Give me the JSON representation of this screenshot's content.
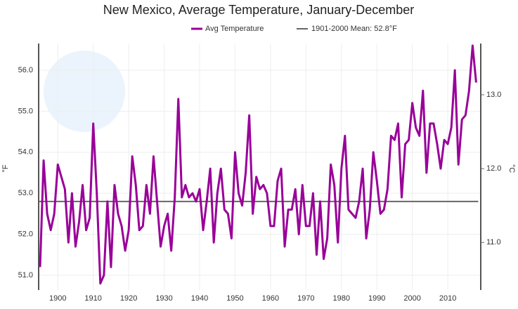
{
  "chart_data": {
    "type": "line",
    "title": "New Mexico, Average Temperature, January-December",
    "ylabel": "°F",
    "y2label": "°C",
    "x": [
      1895,
      1896,
      1897,
      1898,
      1899,
      1900,
      1901,
      1902,
      1903,
      1904,
      1905,
      1906,
      1907,
      1908,
      1909,
      1910,
      1911,
      1912,
      1913,
      1914,
      1915,
      1916,
      1917,
      1918,
      1919,
      1920,
      1921,
      1922,
      1923,
      1924,
      1925,
      1926,
      1927,
      1928,
      1929,
      1930,
      1931,
      1932,
      1933,
      1934,
      1935,
      1936,
      1937,
      1938,
      1939,
      1940,
      1941,
      1942,
      1943,
      1944,
      1945,
      1946,
      1947,
      1948,
      1949,
      1950,
      1951,
      1952,
      1953,
      1954,
      1955,
      1956,
      1957,
      1958,
      1959,
      1960,
      1961,
      1962,
      1963,
      1964,
      1965,
      1966,
      1967,
      1968,
      1969,
      1970,
      1971,
      1972,
      1973,
      1974,
      1975,
      1976,
      1977,
      1978,
      1979,
      1980,
      1981,
      1982,
      1983,
      1984,
      1985,
      1986,
      1987,
      1988,
      1989,
      1990,
      1991,
      1992,
      1993,
      1994,
      1995,
      1996,
      1997,
      1998,
      1999,
      2000,
      2001,
      2002,
      2003,
      2004,
      2005,
      2006,
      2007,
      2008,
      2009,
      2010,
      2011,
      2012,
      2013,
      2014,
      2015,
      2016,
      2017,
      2018
    ],
    "series": [
      {
        "name": "Avg Temperature",
        "color": "#990099",
        "values": [
          51.2,
          53.8,
          52.5,
          52.1,
          52.5,
          53.7,
          53.4,
          53.1,
          51.8,
          53.0,
          51.7,
          52.3,
          53.2,
          52.1,
          52.4,
          54.7,
          53.0,
          50.8,
          51.0,
          52.8,
          51.2,
          53.2,
          52.5,
          52.2,
          51.6,
          52.1,
          53.9,
          53.2,
          52.1,
          52.2,
          53.2,
          52.5,
          53.9,
          52.8,
          51.7,
          52.2,
          52.5,
          51.6,
          52.9,
          55.3,
          52.9,
          53.2,
          52.9,
          53.0,
          52.8,
          53.1,
          52.1,
          52.8,
          53.6,
          51.8,
          53.0,
          53.6,
          52.6,
          52.5,
          51.9,
          54.0,
          53.0,
          52.7,
          53.5,
          54.9,
          52.5,
          53.4,
          53.1,
          53.2,
          53.0,
          52.2,
          52.2,
          53.3,
          53.6,
          51.7,
          52.6,
          52.6,
          53.1,
          52.0,
          53.2,
          52.2,
          52.2,
          53.0,
          51.5,
          52.8,
          51.4,
          51.9,
          53.7,
          53.2,
          51.8,
          53.6,
          54.4,
          52.6,
          52.5,
          52.4,
          52.8,
          53.6,
          51.9,
          52.6,
          54.0,
          53.3,
          52.5,
          52.6,
          53.1,
          54.4,
          54.3,
          54.7,
          52.9,
          54.2,
          54.3,
          55.2,
          54.6,
          54.4,
          55.5,
          53.5,
          54.7,
          54.7,
          54.2,
          53.6,
          54.3,
          54.2,
          54.6,
          56.0,
          53.7,
          54.8,
          54.9,
          55.5,
          56.6,
          55.7
        ]
      }
    ],
    "reference_line": {
      "name": "1901-2000 Mean: 52.8°F",
      "value": 52.8,
      "color": "#666666"
    },
    "xlim": [
      1894.6,
      2019.3
    ],
    "xticks": [
      1900,
      1910,
      1920,
      1930,
      1940,
      1950,
      1960,
      1970,
      1980,
      1990,
      2000,
      2010
    ],
    "ylim": [
      50.64,
      56.65
    ],
    "yticks": [
      {
        "value": 51,
        "label": "51.0"
      },
      {
        "value": 52,
        "label": "52.0"
      },
      {
        "value": 53,
        "label": "53.0"
      },
      {
        "value": 54,
        "label": "54.0"
      },
      {
        "value": 55,
        "label": "55.0"
      },
      {
        "value": 56,
        "label": "56.0"
      }
    ],
    "y2lim": [
      10.356,
      13.694
    ],
    "y2ticks": [
      {
        "value": 11,
        "label": "11.0"
      },
      {
        "value": 12,
        "label": "12.0"
      },
      {
        "value": 13,
        "label": "13.0"
      }
    ],
    "grid": true
  }
}
